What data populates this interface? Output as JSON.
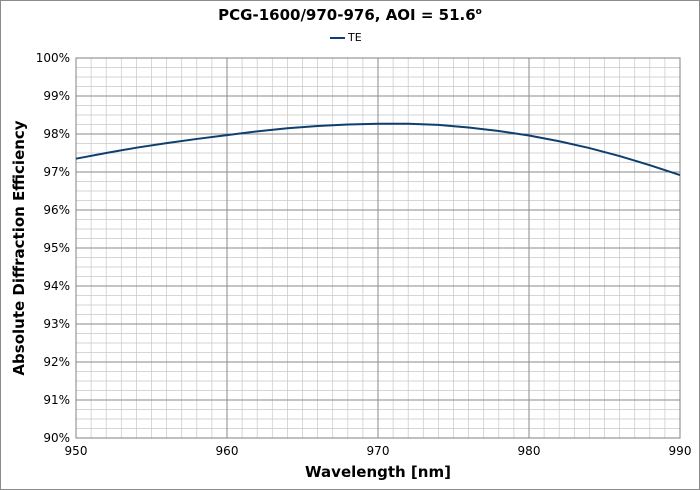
{
  "chart_data": {
    "type": "line",
    "title": "PCG-1600/970-976, AOI = 51.6",
    "title_suffix": "o",
    "xlabel": "Wavelength [nm]",
    "ylabel": "Absolute Diffraction Efficiency",
    "xlim": [
      950,
      990
    ],
    "ylim": [
      0.9,
      1.0
    ],
    "x_ticks": [
      950,
      960,
      970,
      980,
      990
    ],
    "y_ticks": [
      0.9,
      0.91,
      0.92,
      0.93,
      0.94,
      0.95,
      0.96,
      0.97,
      0.98,
      0.99,
      1.0
    ],
    "x_tick_labels": [
      "950",
      "960",
      "970",
      "980",
      "990"
    ],
    "y_tick_labels": [
      "90%",
      "91%",
      "92%",
      "93%",
      "94%",
      "95%",
      "96%",
      "97%",
      "98%",
      "99%",
      "100%"
    ],
    "grid": true,
    "legend_position": "top-center",
    "series": [
      {
        "name": "TE",
        "color": "#0e3f6e",
        "x": [
          950,
          952,
          954,
          956,
          958,
          960,
          962,
          964,
          966,
          968,
          970,
          972,
          974,
          976,
          978,
          980,
          982,
          984,
          986,
          988,
          990
        ],
        "y": [
          0.9735,
          0.975,
          0.9764,
          0.9776,
          0.9787,
          0.9797,
          0.9807,
          0.9815,
          0.9821,
          0.9825,
          0.9827,
          0.9827,
          0.9824,
          0.9817,
          0.9808,
          0.9796,
          0.9781,
          0.9763,
          0.9742,
          0.9718,
          0.9692
        ]
      }
    ]
  }
}
